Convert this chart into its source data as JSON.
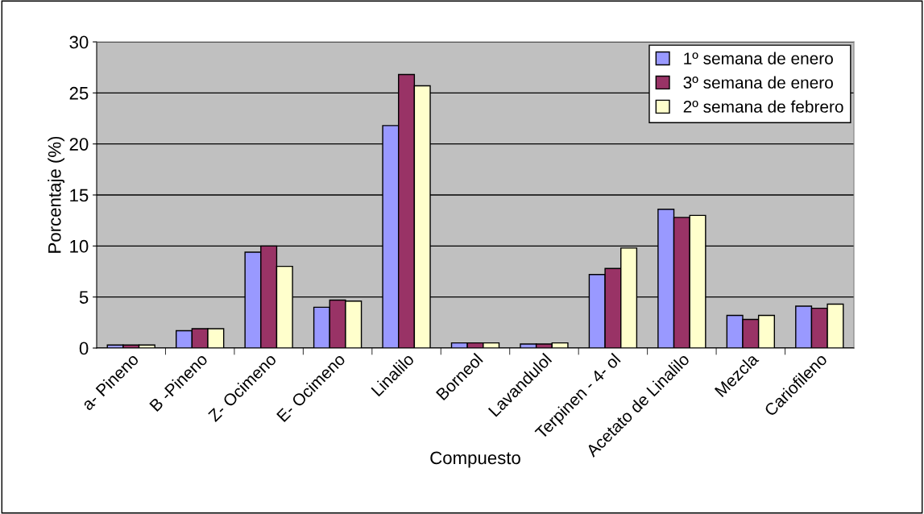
{
  "chart_data": {
    "type": "bar",
    "xlabel": "Compuesto",
    "ylabel": "Porcentaje (%)",
    "categories": [
      "a- Pineno",
      "B -Pineno",
      "Z- Ocimeno",
      "E- Ocimeno",
      "Linalilo",
      "Borneol",
      "Lavandulol",
      "Terpinen - 4- ol",
      "Acetato de Linalilo",
      "Mezcla",
      "Cariofileno"
    ],
    "series": [
      {
        "name": "1º semana de enero",
        "color": "#9999ff",
        "values": [
          0.3,
          1.7,
          9.4,
          4.0,
          21.8,
          0.5,
          0.4,
          7.2,
          13.6,
          3.2,
          4.1
        ]
      },
      {
        "name": "3º semana de enero",
        "color": "#993366",
        "values": [
          0.3,
          1.9,
          10.0,
          4.7,
          26.8,
          0.5,
          0.4,
          7.8,
          12.8,
          2.8,
          3.9
        ]
      },
      {
        "name": "2º semana de febrero",
        "color": "#ffffcc",
        "values": [
          0.3,
          1.9,
          8.0,
          4.6,
          25.7,
          0.5,
          0.5,
          9.8,
          13.0,
          3.2,
          4.3
        ]
      }
    ],
    "ylim": [
      0,
      30
    ],
    "yticks": [
      0,
      5,
      10,
      15,
      20,
      25,
      30
    ],
    "grid": "y",
    "legend": "top right"
  }
}
